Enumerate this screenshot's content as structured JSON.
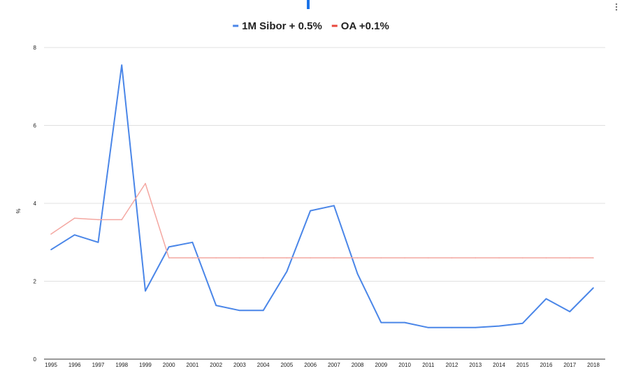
{
  "chart_data": {
    "type": "line",
    "title": "",
    "xlabel": "",
    "ylabel": "%",
    "ylim": [
      0,
      8
    ],
    "yticks": [
      0,
      2,
      4,
      6,
      8
    ],
    "grid": true,
    "legend_position": "top",
    "categories": [
      "1995",
      "1996",
      "1997",
      "1998",
      "1999",
      "2000",
      "2001",
      "2002",
      "2003",
      "2004",
      "2005",
      "2006",
      "2007",
      "2008",
      "2009",
      "2010",
      "2011",
      "2012",
      "2013",
      "2014",
      "2015",
      "2016",
      "2017",
      "2018"
    ],
    "series": [
      {
        "name": "1M Sibor + 0.5%",
        "color": "#4a86e8",
        "values": [
          2.81,
          3.19,
          3.0,
          7.55,
          1.75,
          2.88,
          3.0,
          1.38,
          1.25,
          1.25,
          2.25,
          3.81,
          3.94,
          2.19,
          0.94,
          0.94,
          0.81,
          0.81,
          0.81,
          0.85,
          0.92,
          1.55,
          1.22,
          1.83
        ]
      },
      {
        "name": "OA +0.1%",
        "color": "#f4a7a1",
        "legend_color": "#e8473c",
        "values": [
          3.21,
          3.62,
          3.58,
          3.58,
          4.51,
          2.6,
          2.6,
          2.6,
          2.6,
          2.6,
          2.6,
          2.6,
          2.6,
          2.6,
          2.6,
          2.6,
          2.6,
          2.6,
          2.6,
          2.6,
          2.6,
          2.6,
          2.6,
          2.6
        ]
      }
    ]
  },
  "ui": {
    "menu_icon": "more-vert-icon",
    "accent_color": "#1a73e8"
  }
}
